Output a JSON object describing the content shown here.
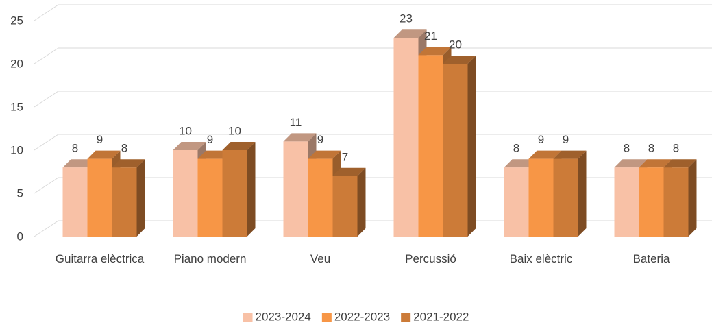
{
  "chart_data": {
    "type": "bar3d",
    "categories": [
      "Guitarra elèctrica",
      "Piano modern",
      "Veu",
      "Percussió",
      "Baix elèctric",
      "Bateria"
    ],
    "series": [
      {
        "name": "2023-2024",
        "color": "#f8c1a6",
        "values": [
          8,
          10,
          11,
          23,
          8,
          8
        ]
      },
      {
        "name": "2022-2023",
        "color": "#f79646",
        "values": [
          9,
          9,
          9,
          21,
          9,
          8
        ]
      },
      {
        "name": "2021-2022",
        "color": "#cc7b38",
        "values": [
          8,
          10,
          7,
          20,
          9,
          8
        ]
      }
    ],
    "ylim": [
      0,
      25
    ],
    "yticks": [
      0,
      5,
      10,
      15,
      20,
      25
    ],
    "grid": true,
    "legend": "bottom",
    "data_labels": true
  }
}
